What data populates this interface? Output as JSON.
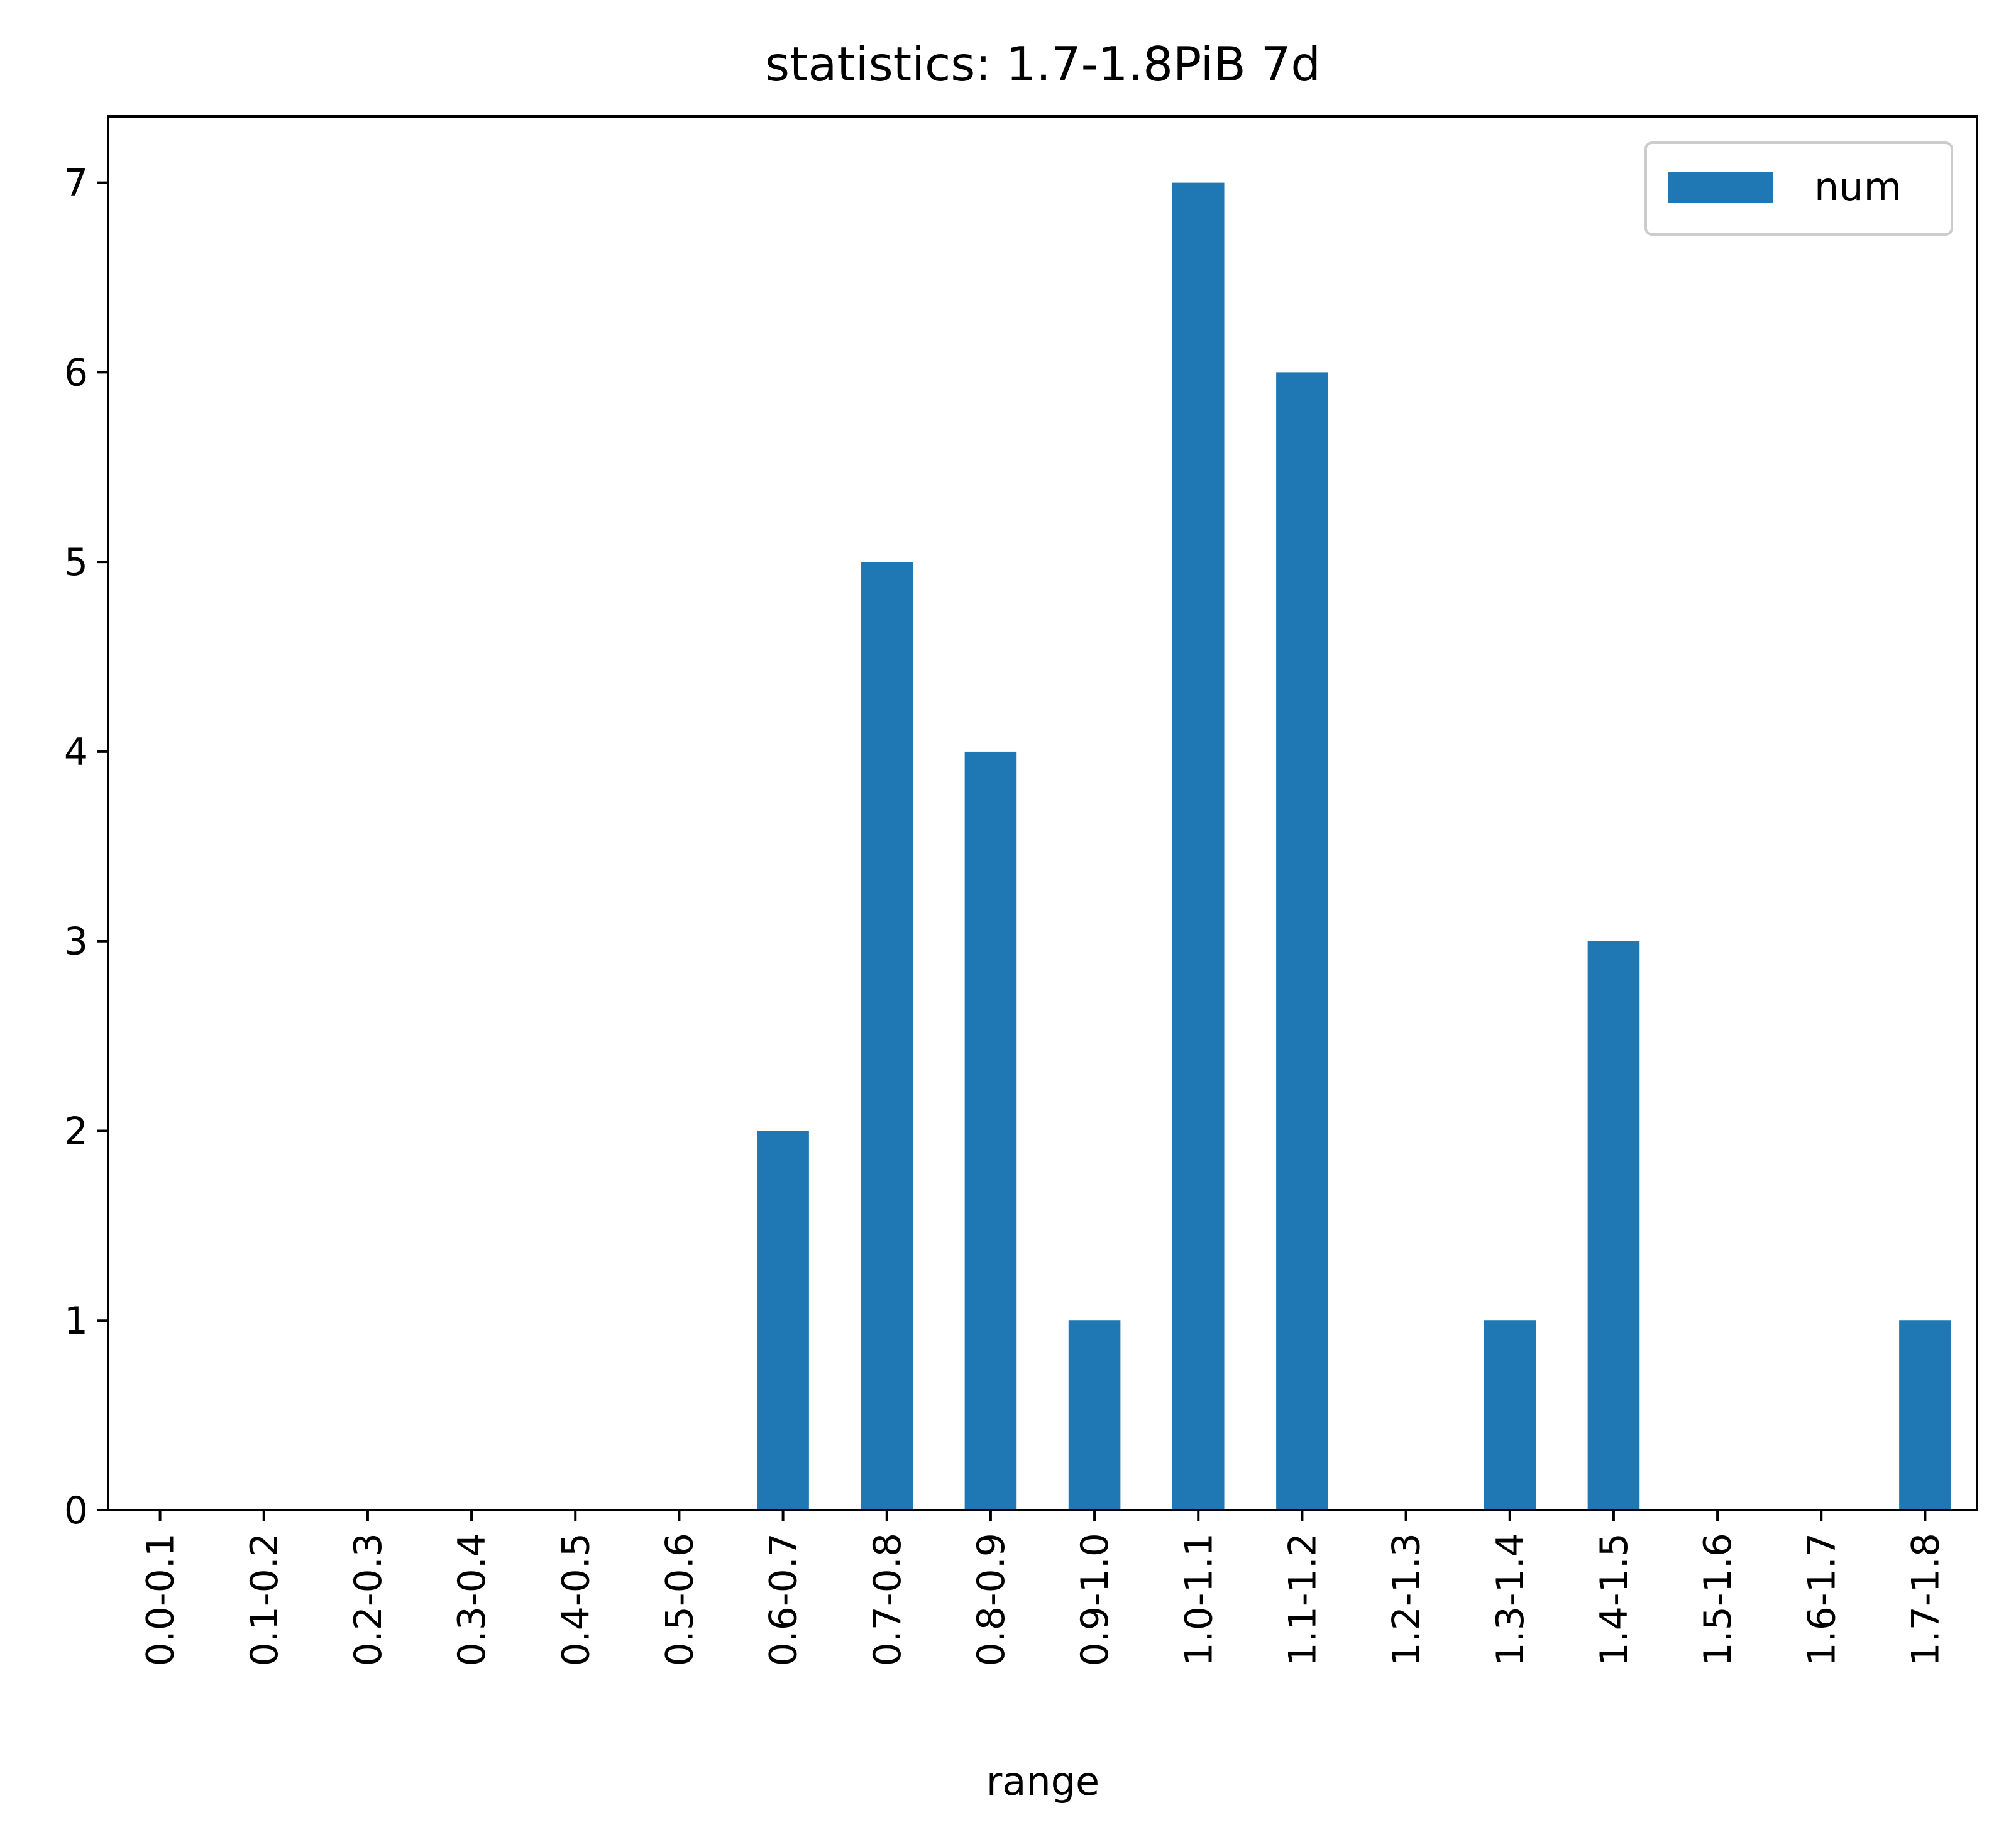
{
  "chart_data": {
    "type": "bar",
    "title": "statistics: 1.7-1.8PiB 7d",
    "xlabel": "range",
    "ylabel": "",
    "categories": [
      "0.0-0.1",
      "0.1-0.2",
      "0.2-0.3",
      "0.3-0.4",
      "0.4-0.5",
      "0.5-0.6",
      "0.6-0.7",
      "0.7-0.8",
      "0.8-0.9",
      "0.9-1.0",
      "1.0-1.1",
      "1.1-1.2",
      "1.2-1.3",
      "1.3-1.4",
      "1.4-1.5",
      "1.5-1.6",
      "1.6-1.7",
      "1.7-1.8"
    ],
    "series": [
      {
        "name": "num",
        "color": "#1f77b4",
        "values": [
          0,
          0,
          0,
          0,
          0,
          0,
          2,
          5,
          4,
          1,
          7,
          6,
          0,
          1,
          3,
          0,
          0,
          1
        ]
      }
    ],
    "ylim": [
      0,
      7.35
    ],
    "yticks": [
      0,
      1,
      2,
      3,
      4,
      5,
      6,
      7
    ],
    "grid": false,
    "legend": {
      "position": "top-right"
    }
  }
}
